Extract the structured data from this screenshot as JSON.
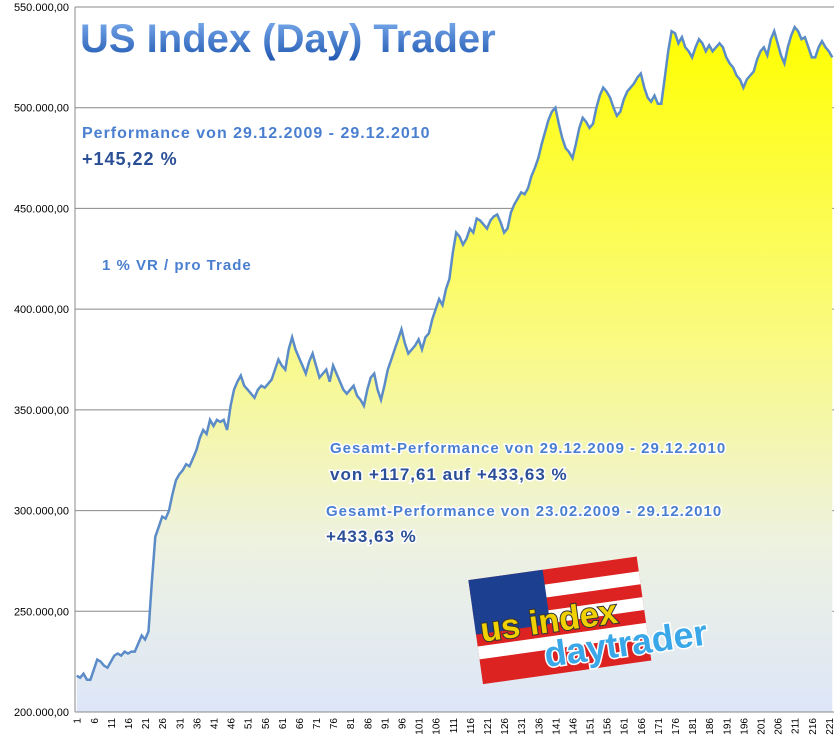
{
  "chart_data": {
    "type": "area",
    "title": "US Index (Day) Trader",
    "annotations": [
      {
        "text": "Performance  von  29.12.2009 - 29.12.2010"
      },
      {
        "text": "+145,22  %"
      },
      {
        "text": "1 % VR / pro Trade"
      },
      {
        "text": "Gesamt-Performance  von  29.12.2009 - 29.12.2010"
      },
      {
        "text": "von +117,61 auf +433,63 %"
      },
      {
        "text": "Gesamt-Performance  von  23.02.2009 - 29.12.2010"
      },
      {
        "text": "+433,63 %"
      },
      {
        "text": "us index"
      },
      {
        "text": "daytrader"
      }
    ],
    "categories": [
      "1",
      null,
      null,
      null,
      null,
      "6",
      null,
      null,
      null,
      null,
      "11",
      null,
      null,
      null,
      null,
      "16",
      null,
      null,
      null,
      null,
      "21",
      null,
      null,
      null,
      null,
      "26",
      null,
      null,
      null,
      null,
      "31",
      null,
      null,
      null,
      null,
      "36",
      null,
      null,
      null,
      null,
      "41",
      null,
      null,
      null,
      null,
      "46",
      null,
      null,
      null,
      null,
      "51",
      null,
      null,
      null,
      null,
      "56",
      null,
      null,
      null,
      null,
      "61",
      null,
      null,
      null,
      null,
      "66",
      null,
      null,
      null,
      null,
      "71",
      null,
      null,
      null,
      null,
      "76",
      null,
      null,
      null,
      null,
      "81",
      null,
      null,
      null,
      null,
      "86",
      null,
      null,
      null,
      null,
      "91",
      null,
      null,
      null,
      null,
      "96",
      null,
      null,
      null,
      null,
      "101",
      null,
      null,
      null,
      null,
      "106",
      null,
      null,
      null,
      null,
      "111",
      null,
      null,
      null,
      null,
      "116",
      null,
      null,
      null,
      null,
      "121",
      null,
      null,
      null,
      null,
      "126",
      null,
      null,
      null,
      null,
      "131",
      null,
      null,
      null,
      null,
      "136",
      null,
      null,
      null,
      null,
      "141",
      null,
      null,
      null,
      null,
      "146",
      null,
      null,
      null,
      null,
      "151",
      null,
      null,
      null,
      null,
      "156",
      null,
      null,
      null,
      null,
      "161",
      null,
      null,
      null,
      null,
      "166",
      null,
      null,
      null,
      null,
      "171",
      null,
      null,
      null,
      null,
      "176",
      null,
      null,
      null,
      null,
      "181",
      null,
      null,
      null,
      null,
      "186",
      null,
      null,
      null,
      null,
      "191",
      null,
      null,
      null,
      null,
      "196",
      null,
      null,
      null,
      null,
      "201",
      null,
      null,
      null,
      null,
      "206",
      null,
      null,
      null,
      null,
      "211",
      null,
      null,
      null,
      null,
      "216",
      null,
      null,
      null,
      null,
      "221",
      null
    ],
    "values": [
      218000,
      217000,
      219000,
      216000,
      216000,
      221000,
      226000,
      225000,
      223000,
      222000,
      225000,
      228000,
      229000,
      228000,
      230000,
      229000,
      230000,
      230000,
      234000,
      238000,
      236000,
      240000,
      265000,
      287000,
      292000,
      297000,
      296000,
      300000,
      308000,
      315000,
      318000,
      320000,
      323000,
      322000,
      326000,
      330000,
      336000,
      340000,
      338000,
      345000,
      342000,
      345000,
      344000,
      345000,
      340000,
      352000,
      360000,
      364000,
      367000,
      362000,
      360000,
      358000,
      356000,
      360000,
      362000,
      361000,
      363000,
      365000,
      370000,
      375000,
      372000,
      370000,
      380000,
      386000,
      380000,
      376000,
      372000,
      368000,
      374000,
      378000,
      372000,
      366000,
      368000,
      370000,
      364000,
      372000,
      368000,
      364000,
      360000,
      358000,
      360000,
      362000,
      357000,
      355000,
      352000,
      360000,
      366000,
      368000,
      360000,
      355000,
      362000,
      370000,
      375000,
      380000,
      385000,
      390000,
      383000,
      378000,
      380000,
      382000,
      385000,
      380000,
      386000,
      388000,
      395000,
      400000,
      405000,
      402000,
      410000,
      415000,
      428000,
      438000,
      436000,
      432000,
      435000,
      440000,
      438000,
      445000,
      444000,
      442000,
      440000,
      444000,
      446000,
      447000,
      443000,
      438000,
      440000,
      448000,
      452000,
      455000,
      458000,
      457000,
      460000,
      466000,
      470000,
      475000,
      482000,
      488000,
      494000,
      498000,
      500000,
      492000,
      485000,
      480000,
      478000,
      475000,
      482000,
      490000,
      495000,
      493000,
      490000,
      492000,
      500000,
      506000,
      510000,
      508000,
      505000,
      500000,
      496000,
      498000,
      504000,
      508000,
      510000,
      512000,
      515000,
      517000,
      510000,
      505000,
      503000,
      506000,
      502000,
      502000,
      515000,
      528000,
      538000,
      537000,
      532000,
      535000,
      530000,
      528000,
      525000,
      530000,
      534000,
      532000,
      528000,
      531000,
      528000,
      530000,
      532000,
      530000,
      525000,
      522000,
      520000,
      516000,
      514000,
      510000,
      514000,
      516000,
      518000,
      524000,
      528000,
      530000,
      526000,
      534000,
      538000,
      532000,
      526000,
      522000,
      530000,
      536000,
      540000,
      538000,
      534000,
      535000,
      530000,
      525000,
      525000,
      530000,
      533000,
      530000,
      528000,
      525000
    ],
    "color": "#5b8cc8",
    "ylim": [
      200000,
      550000
    ],
    "yticks": [
      {
        "value": 200000,
        "label": "200.000,00"
      },
      {
        "value": 250000,
        "label": "250.000,00"
      },
      {
        "value": 300000,
        "label": "300.000,00"
      },
      {
        "value": 350000,
        "label": "350.000,00"
      },
      {
        "value": 400000,
        "label": "400.000,00"
      },
      {
        "value": 450000,
        "label": "450.000,00"
      },
      {
        "value": 500000,
        "label": "500.000,00"
      },
      {
        "value": 550000,
        "label": "550.000,00"
      }
    ],
    "grid": true
  }
}
